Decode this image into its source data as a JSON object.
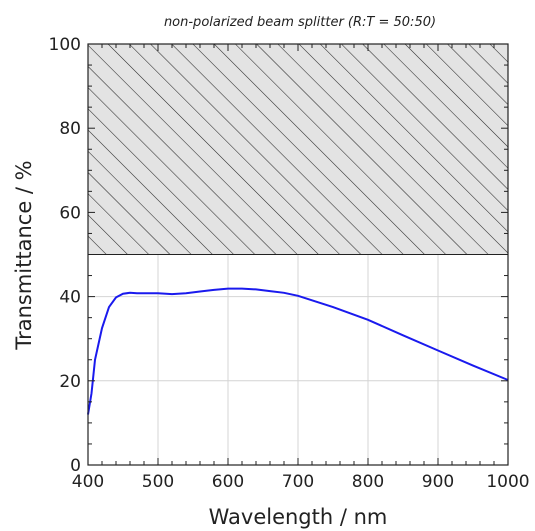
{
  "chart_data": {
    "type": "line",
    "title": "non-polarized beam splitter  (R:T = 50:50)",
    "xlabel": "Wavelength / nm",
    "ylabel": "Transmittance / %",
    "xlim": [
      400,
      1000
    ],
    "ylim": [
      0,
      100
    ],
    "x_ticks": [
      "400",
      "500",
      "600",
      "700",
      "800",
      "900",
      "1000"
    ],
    "y_ticks": [
      "0",
      "20",
      "40",
      "60",
      "80",
      "100"
    ],
    "grid": true,
    "hatched_region": {
      "y_from": 50,
      "y_to": 100,
      "pattern": "diagonal hatch"
    },
    "series": [
      {
        "color": "#1a1aee",
        "x": [
          400,
          405,
          410,
          420,
          430,
          440,
          450,
          460,
          470,
          480,
          500,
          520,
          540,
          560,
          580,
          600,
          620,
          640,
          660,
          680,
          700,
          750,
          800,
          850,
          900,
          950,
          1000
        ],
        "y": [
          12,
          17,
          25,
          32.5,
          37.5,
          39.8,
          40.7,
          40.9,
          40.8,
          40.8,
          40.8,
          40.6,
          40.8,
          41.2,
          41.6,
          41.9,
          41.9,
          41.7,
          41.3,
          40.9,
          40.2,
          37.5,
          34.5,
          30.8,
          27.2,
          23.6,
          20.2
        ]
      }
    ]
  }
}
